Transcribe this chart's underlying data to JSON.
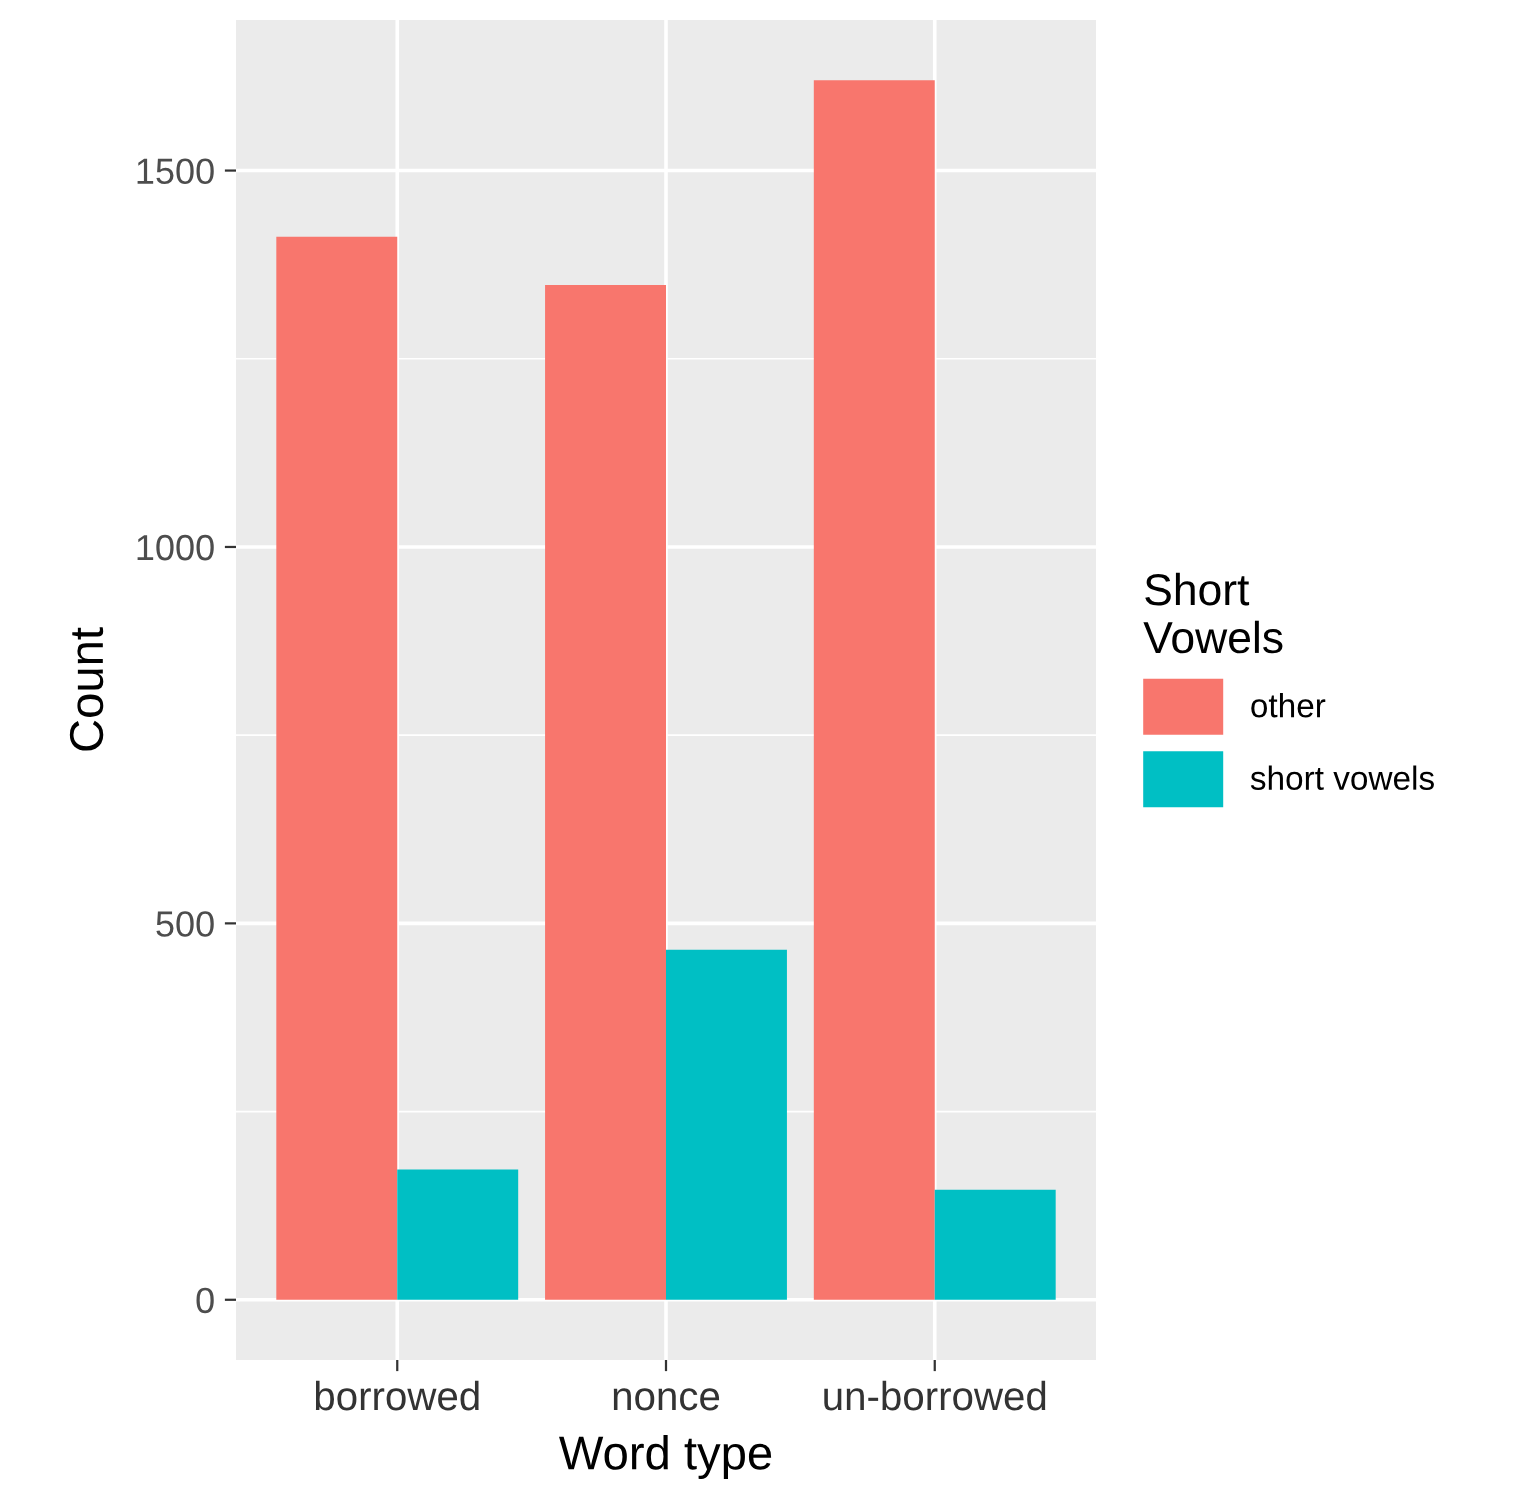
{
  "chart_data": {
    "type": "bar",
    "xlabel": "Word type",
    "ylabel": "Count",
    "legend_title": "Short\nVowels",
    "categories": [
      "borrowed",
      "nonce",
      "un-borrowed"
    ],
    "series": [
      {
        "name": "other",
        "color": "#f8766d",
        "values": [
          1412,
          1348,
          1620
        ]
      },
      {
        "name": "short vowels",
        "color": "#00bfc4",
        "values": [
          173,
          465,
          146
        ]
      }
    ],
    "ylim": [
      -80,
      1700
    ],
    "yticks": [
      0,
      500,
      1000,
      1500
    ],
    "grid": true,
    "legend": "right"
  }
}
